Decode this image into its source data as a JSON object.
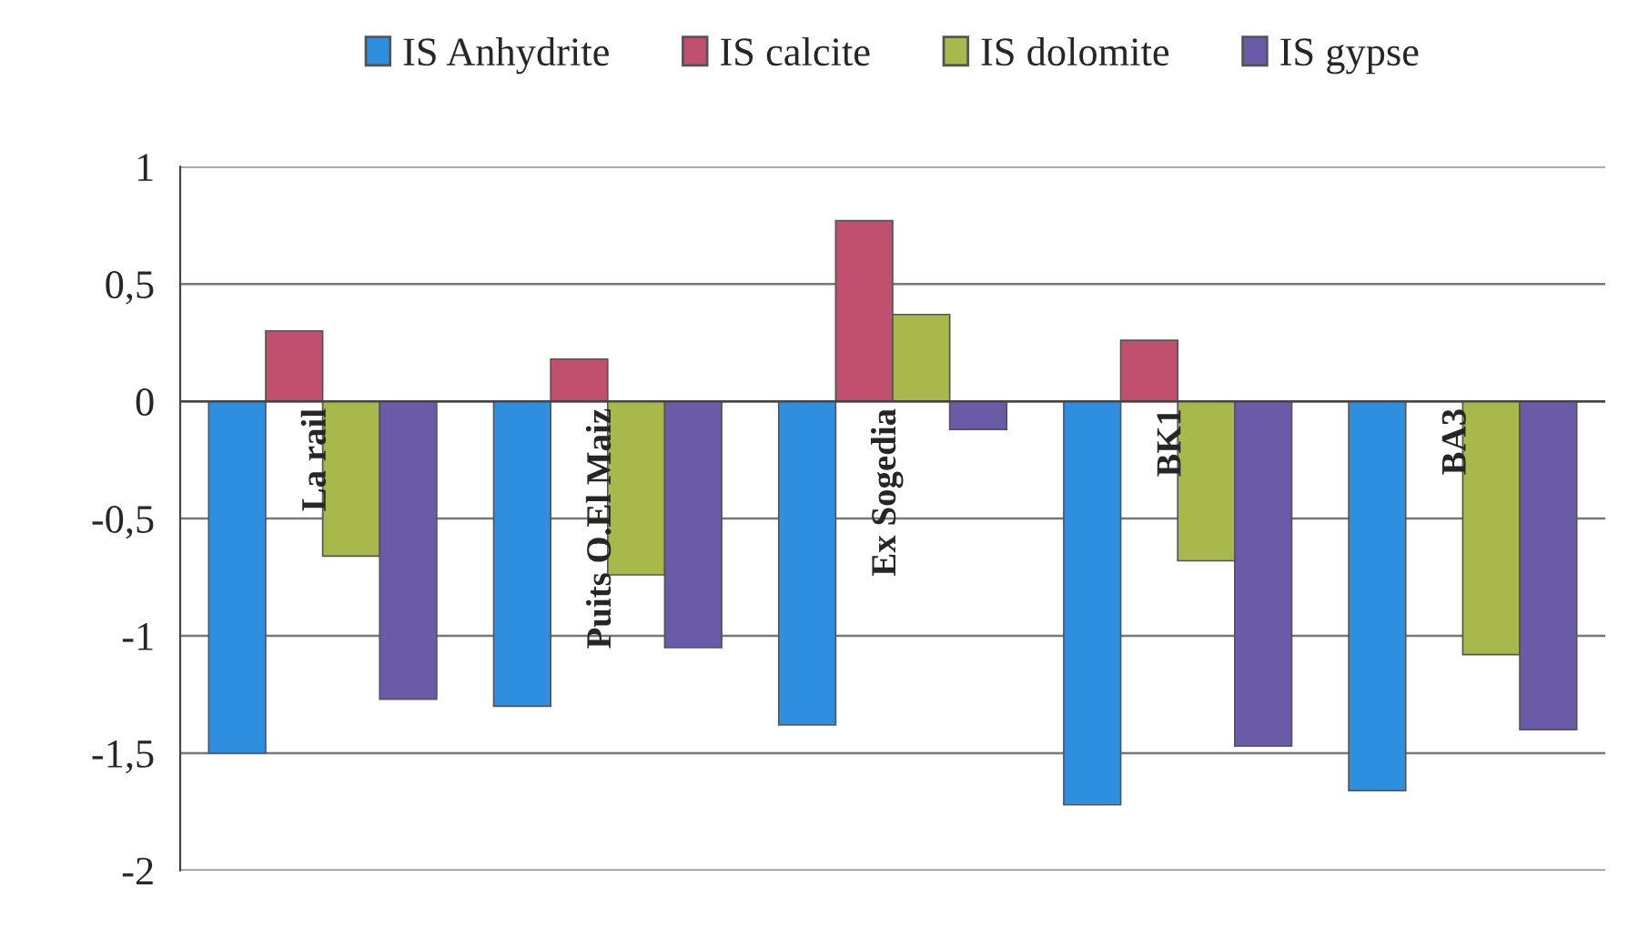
{
  "chart_data": {
    "type": "bar",
    "categories": [
      "La rail",
      "Puits O.El Maiz",
      "Ex Sogedia",
      "BK1",
      "BA3"
    ],
    "series": [
      {
        "name": "IS Anhydrite",
        "color": "#2e8fe0",
        "values": [
          -1.5,
          -1.3,
          -1.38,
          -1.72,
          -1.66
        ]
      },
      {
        "name": "IS calcite",
        "color": "#c0506e",
        "values": [
          0.3,
          0.18,
          0.77,
          0.26,
          null
        ]
      },
      {
        "name": "IS dolomite",
        "color": "#a8b84a",
        "values": [
          -0.66,
          -0.74,
          0.37,
          -0.68,
          -1.08
        ]
      },
      {
        "name": "IS gypse",
        "color": "#6a5aa8",
        "values": [
          -1.27,
          -1.05,
          -0.12,
          -1.47,
          -1.4
        ]
      }
    ],
    "ylim": [
      -2,
      1
    ],
    "yticks": [
      {
        "value": -2,
        "label": "-2"
      },
      {
        "value": -1.5,
        "label": "-1,5"
      },
      {
        "value": -1,
        "label": "-1"
      },
      {
        "value": -0.5,
        "label": "-0,5"
      },
      {
        "value": 0,
        "label": "0"
      },
      {
        "value": 0.5,
        "label": "0,5"
      },
      {
        "value": 1,
        "label": "1"
      }
    ],
    "grid": "y",
    "legend": "top"
  }
}
